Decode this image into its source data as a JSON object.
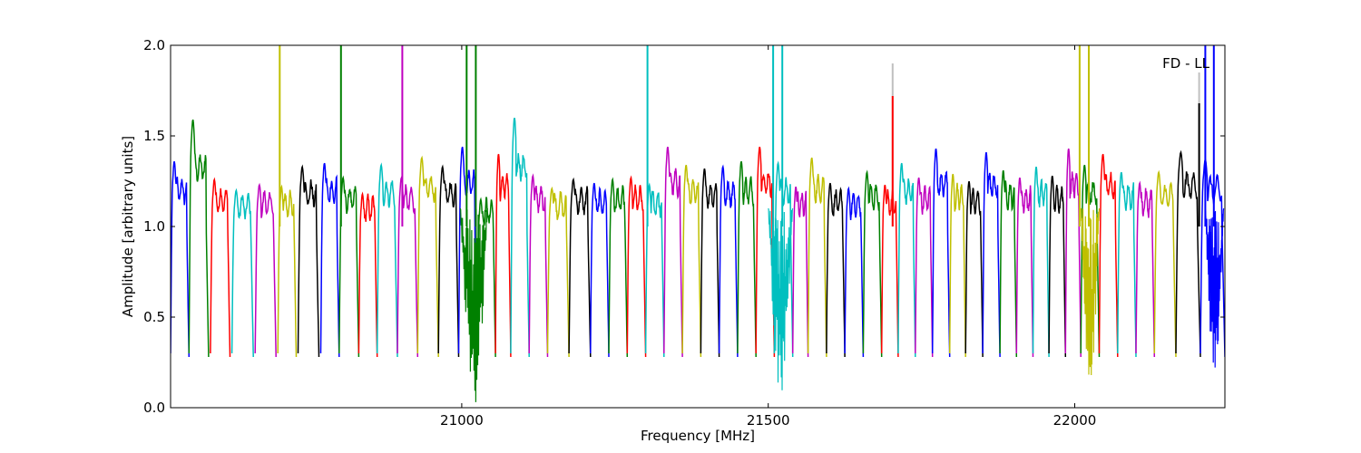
{
  "chart_data": {
    "type": "line",
    "title": "",
    "xlabel": "Frequency [MHz]",
    "ylabel": "Amplitude [arbitrary units]",
    "xlim": [
      20525,
      22245
    ],
    "ylim": [
      0.0,
      2.0
    ],
    "x_ticks": [
      21000,
      21500,
      22000
    ],
    "x_tick_labels": [
      "21000",
      "21500",
      "22000"
    ],
    "y_ticks": [
      0.0,
      0.5,
      1.0,
      1.5,
      2.0
    ],
    "y_tick_labels": [
      "0.0",
      "0.5",
      "1.0",
      "1.5",
      "2.0"
    ],
    "annotation": "FD - LL",
    "grid": false,
    "legend": "none",
    "colors": {
      "blue": "#0000ff",
      "green": "#008000",
      "red": "#ff0000",
      "cyan": "#00bfbf",
      "magenta": "#bf00bf",
      "yellow": "#bfbf00",
      "black": "#000000",
      "shadow": "#c0c0c0"
    },
    "color_cycle": [
      "blue",
      "green",
      "red",
      "cyan",
      "magenta",
      "yellow",
      "black"
    ],
    "bands": [
      {
        "start": 20525,
        "end": 20555,
        "peak": 1.36,
        "color": "blue"
      },
      {
        "start": 20555,
        "end": 20587,
        "peak": 1.59,
        "color": "green"
      },
      {
        "start": 20590,
        "end": 20622,
        "peak": 1.26,
        "color": "red"
      },
      {
        "start": 20625,
        "end": 20660,
        "peak": 1.2,
        "color": "cyan"
      },
      {
        "start": 20663,
        "end": 20697,
        "peak": 1.23,
        "color": "magenta"
      },
      {
        "start": 20700,
        "end": 20730,
        "peak": 1.22,
        "color": "yellow"
      },
      {
        "start": 20733,
        "end": 20767,
        "peak": 1.33,
        "color": "black"
      },
      {
        "start": 20770,
        "end": 20800,
        "peak": 1.35,
        "color": "blue"
      },
      {
        "start": 20800,
        "end": 20832,
        "peak": 1.27,
        "color": "green"
      },
      {
        "start": 20832,
        "end": 20862,
        "peak": 1.18,
        "color": "red"
      },
      {
        "start": 20862,
        "end": 20895,
        "peak": 1.34,
        "color": "cyan"
      },
      {
        "start": 20895,
        "end": 20928,
        "peak": 1.27,
        "color": "magenta"
      },
      {
        "start": 20928,
        "end": 20962,
        "peak": 1.38,
        "color": "yellow"
      },
      {
        "start": 20962,
        "end": 20995,
        "peak": 1.33,
        "color": "black"
      },
      {
        "start": 20995,
        "end": 21025,
        "peak": 1.44,
        "color": "blue"
      },
      {
        "start": 21025,
        "end": 21055,
        "peak": 1.15,
        "color": "green"
      },
      {
        "start": 21055,
        "end": 21080,
        "peak": 1.4,
        "color": "red"
      },
      {
        "start": 21080,
        "end": 21110,
        "peak": 1.6,
        "color": "cyan"
      },
      {
        "start": 21110,
        "end": 21140,
        "peak": 1.28,
        "color": "magenta"
      },
      {
        "start": 21140,
        "end": 21175,
        "peak": 1.21,
        "color": "yellow"
      },
      {
        "start": 21175,
        "end": 21210,
        "peak": 1.26,
        "color": "black"
      },
      {
        "start": 21210,
        "end": 21240,
        "peak": 1.24,
        "color": "blue"
      },
      {
        "start": 21240,
        "end": 21270,
        "peak": 1.26,
        "color": "green"
      },
      {
        "start": 21270,
        "end": 21300,
        "peak": 1.27,
        "color": "red"
      },
      {
        "start": 21300,
        "end": 21330,
        "peak": 1.23,
        "color": "cyan"
      },
      {
        "start": 21330,
        "end": 21360,
        "peak": 1.44,
        "color": "magenta"
      },
      {
        "start": 21360,
        "end": 21390,
        "peak": 1.34,
        "color": "yellow"
      },
      {
        "start": 21390,
        "end": 21420,
        "peak": 1.32,
        "color": "black"
      },
      {
        "start": 21420,
        "end": 21450,
        "peak": 1.33,
        "color": "blue"
      },
      {
        "start": 21450,
        "end": 21480,
        "peak": 1.36,
        "color": "green"
      },
      {
        "start": 21480,
        "end": 21510,
        "peak": 1.44,
        "color": "red"
      },
      {
        "start": 21510,
        "end": 21540,
        "peak": 1.35,
        "color": "cyan"
      },
      {
        "start": 21540,
        "end": 21565,
        "peak": 1.22,
        "color": "magenta"
      },
      {
        "start": 21565,
        "end": 21595,
        "peak": 1.38,
        "color": "yellow"
      },
      {
        "start": 21595,
        "end": 21625,
        "peak": 1.24,
        "color": "black"
      },
      {
        "start": 21625,
        "end": 21655,
        "peak": 1.21,
        "color": "blue"
      },
      {
        "start": 21655,
        "end": 21685,
        "peak": 1.3,
        "color": "green"
      },
      {
        "start": 21685,
        "end": 21712,
        "peak": 1.23,
        "color": "red"
      },
      {
        "start": 21712,
        "end": 21740,
        "peak": 1.35,
        "color": "cyan"
      },
      {
        "start": 21740,
        "end": 21768,
        "peak": 1.27,
        "color": "magenta"
      },
      {
        "start": 21768,
        "end": 21796,
        "peak": 1.43,
        "color": "blue"
      },
      {
        "start": 21796,
        "end": 21822,
        "peak": 1.29,
        "color": "yellow"
      },
      {
        "start": 21822,
        "end": 21850,
        "peak": 1.25,
        "color": "black"
      },
      {
        "start": 21850,
        "end": 21878,
        "peak": 1.41,
        "color": "blue"
      },
      {
        "start": 21878,
        "end": 21905,
        "peak": 1.31,
        "color": "green"
      },
      {
        "start": 21905,
        "end": 21932,
        "peak": 1.27,
        "color": "magenta"
      },
      {
        "start": 21932,
        "end": 21958,
        "peak": 1.33,
        "color": "cyan"
      },
      {
        "start": 21958,
        "end": 21985,
        "peak": 1.28,
        "color": "black"
      },
      {
        "start": 21985,
        "end": 22010,
        "peak": 1.43,
        "color": "magenta"
      },
      {
        "start": 22010,
        "end": 22040,
        "peak": 1.34,
        "color": "green"
      },
      {
        "start": 22040,
        "end": 22070,
        "peak": 1.4,
        "color": "red"
      },
      {
        "start": 22070,
        "end": 22100,
        "peak": 1.3,
        "color": "cyan"
      },
      {
        "start": 22100,
        "end": 22130,
        "peak": 1.24,
        "color": "magenta"
      },
      {
        "start": 22130,
        "end": 22165,
        "peak": 1.3,
        "color": "yellow"
      },
      {
        "start": 22165,
        "end": 22205,
        "peak": 1.41,
        "color": "black"
      },
      {
        "start": 22205,
        "end": 22245,
        "peak": 1.37,
        "color": "blue"
      }
    ],
    "spikes": [
      {
        "x": 20703,
        "top": 2.0,
        "color": "yellow"
      },
      {
        "x": 20803,
        "top": 2.0,
        "color": "green"
      },
      {
        "x": 20903,
        "top": 2.0,
        "color": "magenta"
      },
      {
        "x": 21008,
        "top": 2.0,
        "color": "green"
      },
      {
        "x": 21023,
        "top": 2.0,
        "color": "green"
      },
      {
        "x": 21303,
        "top": 2.0,
        "color": "cyan"
      },
      {
        "x": 21508,
        "top": 2.0,
        "color": "cyan"
      },
      {
        "x": 21523,
        "top": 2.0,
        "color": "cyan"
      },
      {
        "x": 21703,
        "top": 1.9,
        "color": "shadow"
      },
      {
        "x": 21703,
        "top": 1.72,
        "color": "red"
      },
      {
        "x": 22008,
        "top": 2.0,
        "color": "yellow"
      },
      {
        "x": 22023,
        "top": 2.0,
        "color": "yellow"
      },
      {
        "x": 22203,
        "top": 1.85,
        "color": "shadow"
      },
      {
        "x": 22203,
        "top": 1.68,
        "color": "black"
      },
      {
        "x": 22213,
        "top": 2.0,
        "color": "blue"
      },
      {
        "x": 22227,
        "top": 2.0,
        "color": "blue"
      }
    ],
    "noisy_dips": [
      {
        "center": 21020,
        "width": 45,
        "min": 0.0,
        "color": "green"
      },
      {
        "center": 21520,
        "width": 40,
        "min": 0.02,
        "color": "cyan"
      },
      {
        "center": 22025,
        "width": 30,
        "min": 0.09,
        "color": "yellow"
      },
      {
        "center": 22228,
        "width": 30,
        "min": 0.17,
        "color": "blue"
      }
    ]
  }
}
